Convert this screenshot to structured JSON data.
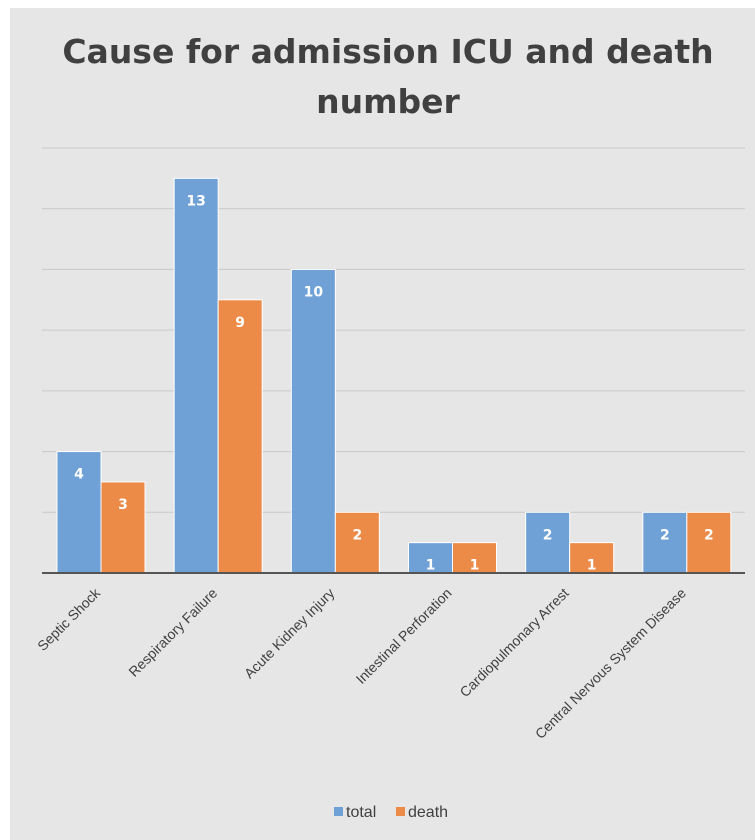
{
  "chart_data": {
    "type": "bar",
    "title_lines": [
      "Cause for admission ICU and death",
      "number"
    ],
    "categories": [
      "Septic Shock",
      "Respiratory Failure",
      "Acute Kidney Injury",
      "Intestinal Perforation",
      "Cardiopulmonary Arrest",
      "Central Nervous System Disease"
    ],
    "series": [
      {
        "name": "total",
        "values": [
          4,
          13,
          10,
          1,
          2,
          2
        ],
        "color": "#6fa1d6"
      },
      {
        "name": "death",
        "values": [
          3,
          9,
          2,
          1,
          1,
          2
        ],
        "color": "#ec8a47"
      }
    ],
    "ylim": [
      0,
      14
    ],
    "grid": true,
    "legend": "bottom",
    "colors": {
      "background": "#e6e6e6",
      "grid": "#c9c9c9",
      "axis": "#555555",
      "title": "#404040"
    }
  }
}
